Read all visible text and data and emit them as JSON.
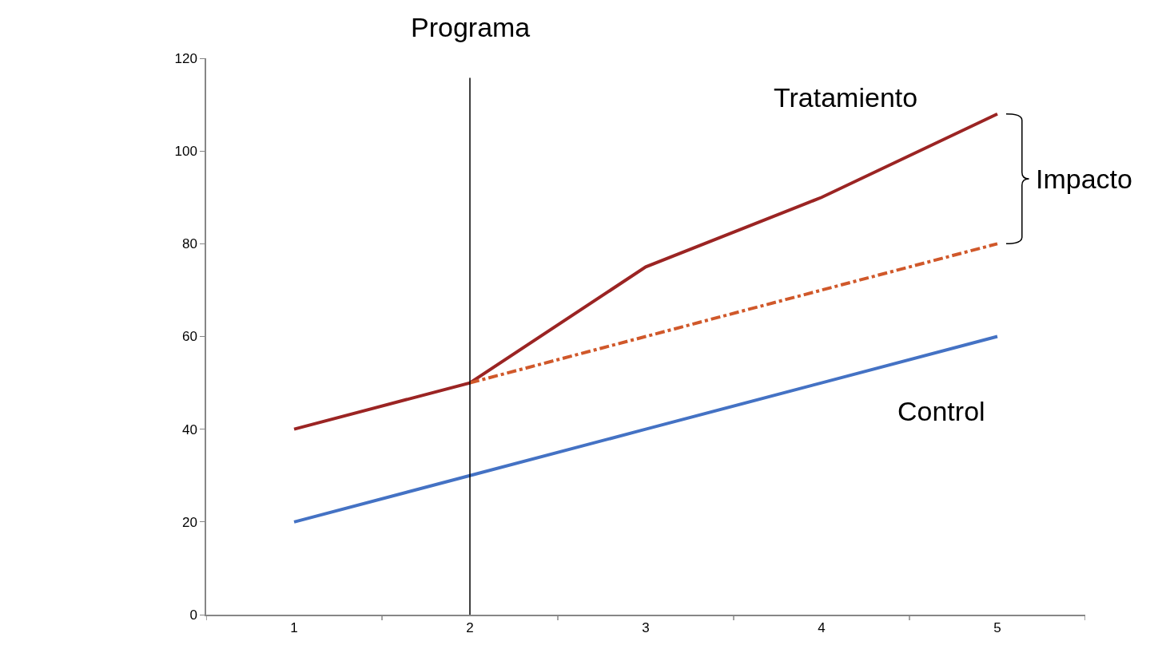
{
  "chart_data": {
    "type": "line",
    "x": [
      1,
      2,
      3,
      4,
      5
    ],
    "series": [
      {
        "name": "Tratamiento",
        "color": "#9b2423",
        "values": [
          40,
          50,
          75,
          90,
          108
        ]
      },
      {
        "color": "#d0582a",
        "x": [
          2,
          3,
          4,
          5
        ],
        "values": [
          50,
          60,
          70,
          80
        ],
        "line_style": "dashed"
      },
      {
        "name": "Control",
        "color": "#4472c4",
        "values": [
          20,
          30,
          40,
          50,
          60
        ]
      }
    ],
    "xlim": [
      0.5,
      5.5
    ],
    "xticks": [
      {
        "value": 0.5,
        "label": null
      },
      1,
      {
        "value": 1.5,
        "label": null
      },
      2,
      {
        "value": 2.5,
        "label": null
      },
      3,
      {
        "value": 3.5,
        "label": null
      },
      4,
      {
        "value": 4.5,
        "label": null
      },
      5,
      {
        "value": 5.5,
        "label": null
      }
    ],
    "ylim": [
      0,
      120
    ],
    "yticks": [
      0,
      20,
      40,
      60,
      80,
      100,
      120
    ],
    "grid": false,
    "legend": false,
    "marker": "none",
    "line_style": "solid",
    "ref_lines": [
      {
        "axis": "x",
        "value": 2,
        "label": "Programa",
        "color": "#000000"
      }
    ],
    "annotations": [
      "Impacto"
    ]
  }
}
